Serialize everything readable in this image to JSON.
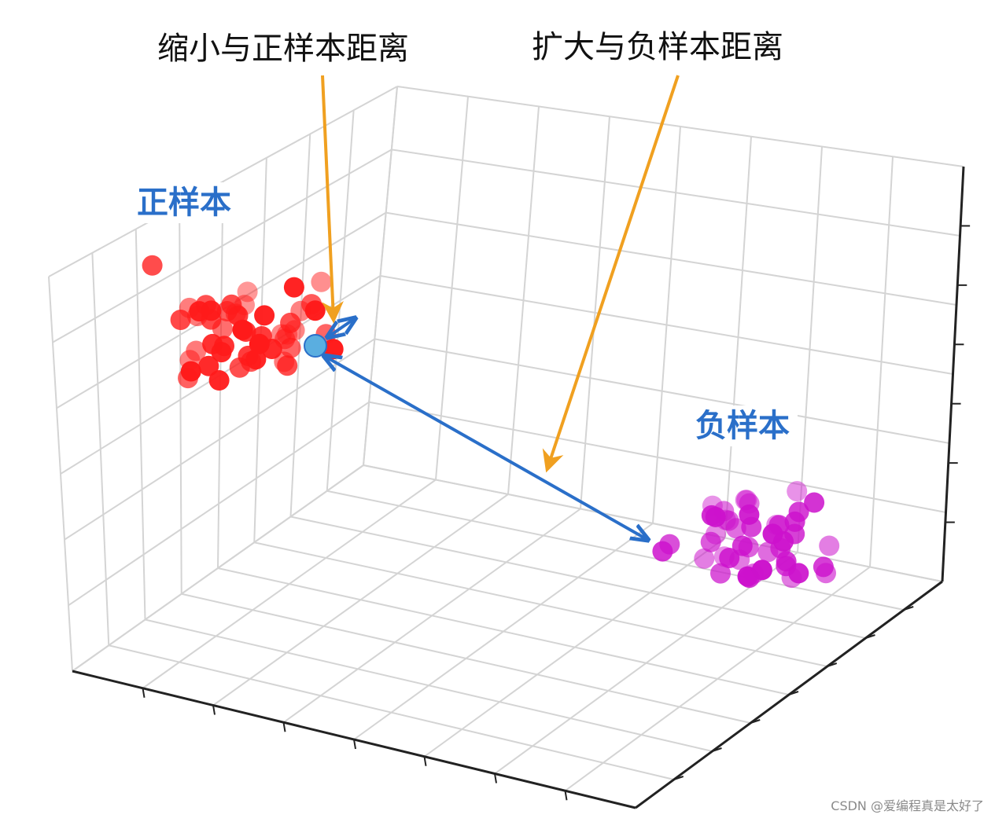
{
  "annotations": {
    "pull_positive": "缩小与正样本距离",
    "push_negative": "扩大与负样本距离"
  },
  "clusters": {
    "positive": {
      "label": "正样本",
      "color": "#ff1a1a",
      "count": 50
    },
    "negative": {
      "label": "负样本",
      "color": "#cc11cc",
      "count": 45
    }
  },
  "anchor": {
    "color": "#5aaee0"
  },
  "colors": {
    "label_text": "#2a6fc9",
    "pointer_arrow": "#f0a020",
    "distance_arrow": "#2a6fc9",
    "grid": "#d4d4d4",
    "axis": "#222222"
  },
  "watermark": "CSDN @爱编程真是太好了"
}
